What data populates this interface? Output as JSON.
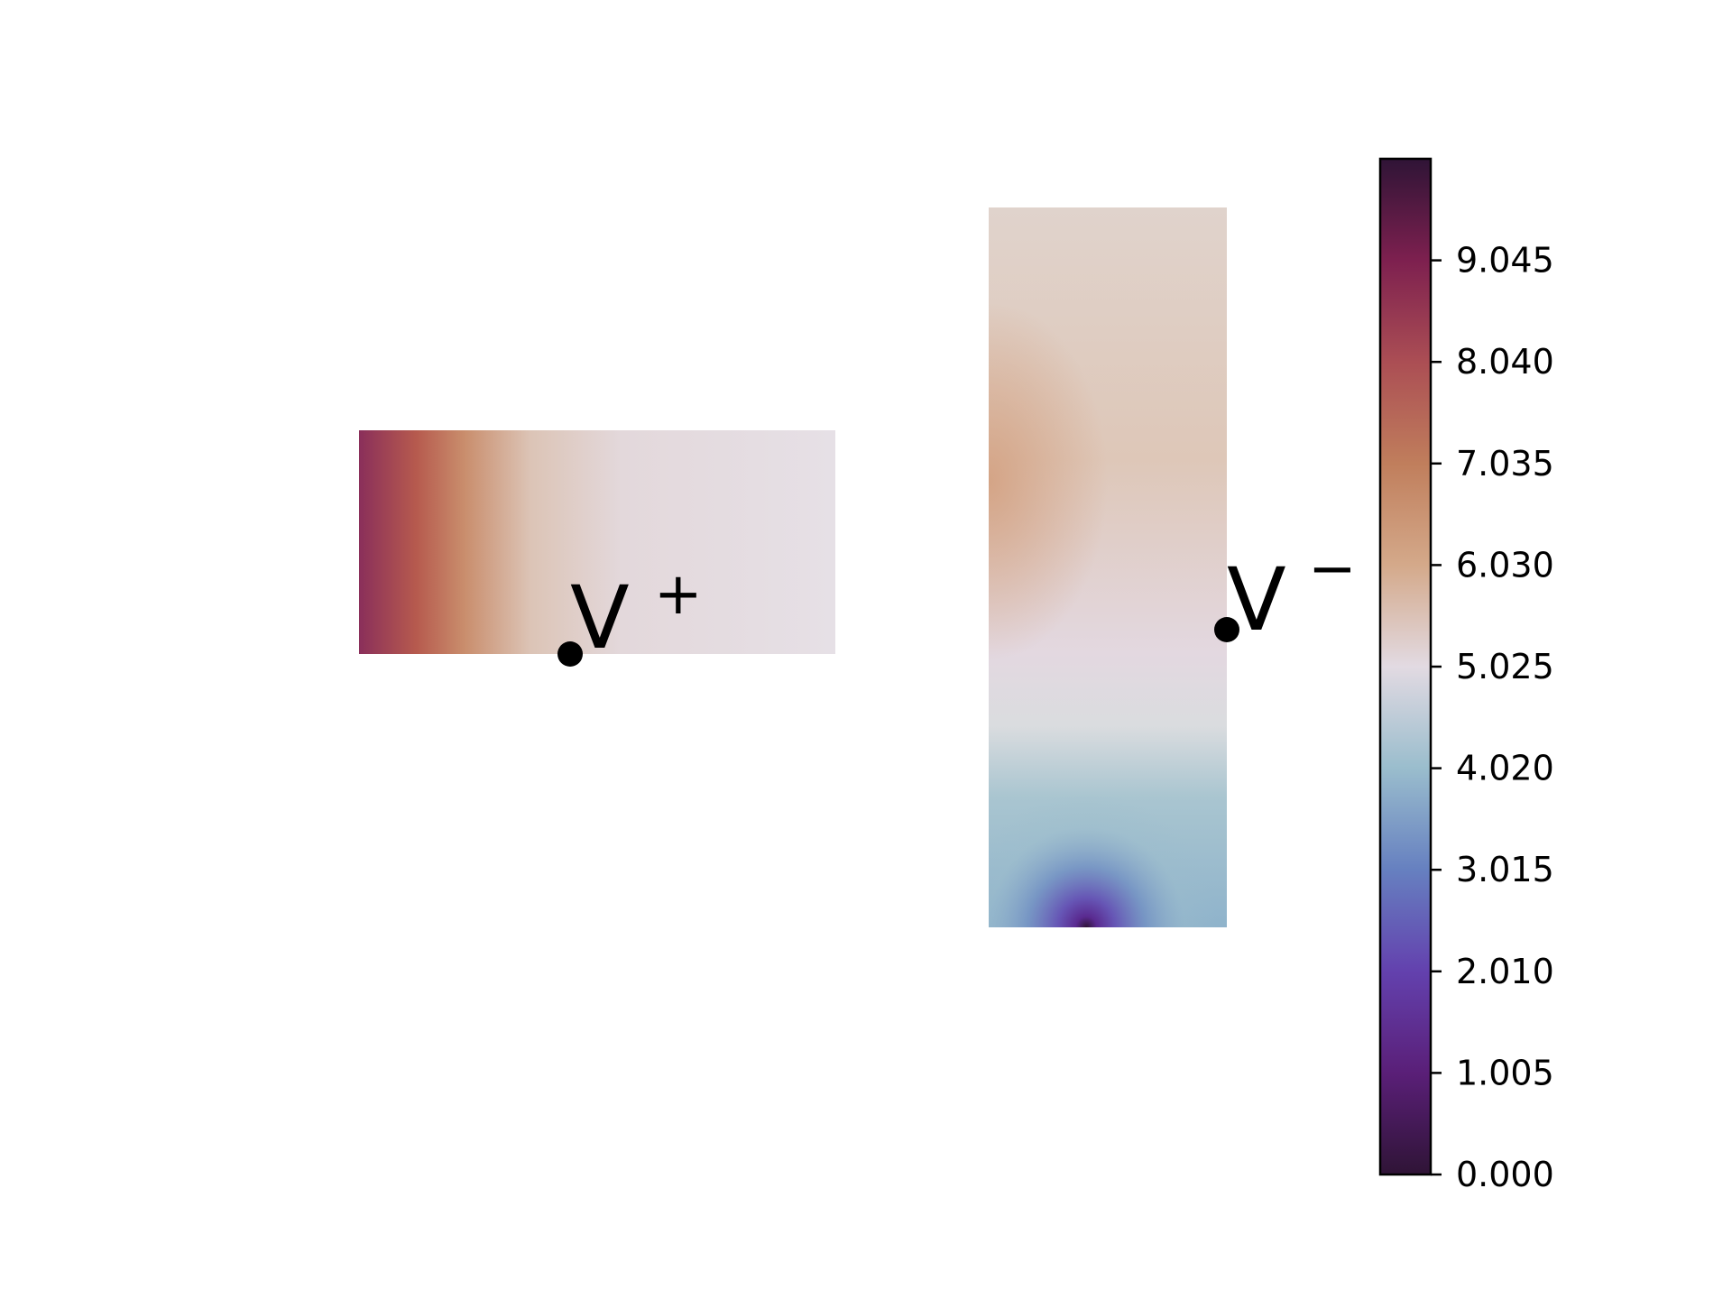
{
  "chart_data": {
    "type": "heatmap",
    "title": "",
    "xlabel": "",
    "ylabel": "",
    "colormap": "twilight_shifted",
    "panels": [
      {
        "name": "",
        "description_values": "field highest (~10) at left edge middle, falls to ~5 toward right",
        "point": {
          "label": "V",
          "sign": "+"
        }
      },
      {
        "name": "",
        "description_values": "field ~6 in upper part, ~5 in middle, falling to ~0 at bottom center",
        "point": {
          "label": "V",
          "sign": "−"
        }
      }
    ],
    "colorbar": {
      "range": [
        0.0,
        10.05
      ],
      "ticks": [
        "0.000",
        "1.005",
        "2.010",
        "3.015",
        "4.020",
        "5.025",
        "6.030",
        "7.035",
        "8.040",
        "9.045"
      ]
    },
    "colors": {
      "c0": "#2f1436",
      "c1": "#5a1f78",
      "c2": "#6341ae",
      "c3": "#6680c0",
      "c4": "#9abdcd",
      "c5": "#e2dae2",
      "c6": "#d4a98a",
      "c7": "#c07e5c",
      "c8": "#ab4e54",
      "c9": "#7d204f",
      "c10": "#2f1436"
    }
  }
}
